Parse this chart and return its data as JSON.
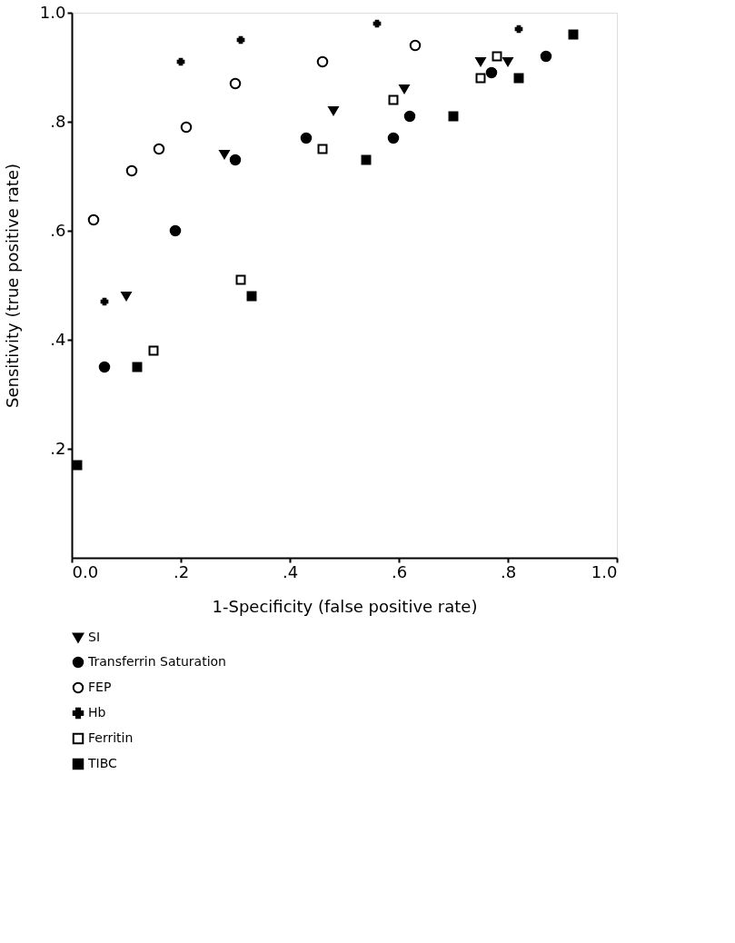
{
  "chart_data": {
    "type": "scatter",
    "xlabel": "1-Specificity (false positive rate)",
    "ylabel": "Sensitivity (true positive rate)",
    "xlim": [
      0,
      1
    ],
    "ylim": [
      0,
      1
    ],
    "xticks": [
      {
        "value": 0,
        "label": "0.0"
      },
      {
        "value": 0.2,
        "label": ".2"
      },
      {
        "value": 0.4,
        "label": ".4"
      },
      {
        "value": 0.6,
        "label": ".6"
      },
      {
        "value": 0.8,
        "label": ".8"
      },
      {
        "value": 1,
        "label": "1.0"
      }
    ],
    "yticks": [
      {
        "value": 0.2,
        "label": ".2"
      },
      {
        "value": 0.4,
        "label": ".4"
      },
      {
        "value": 0.6,
        "label": ".6"
      },
      {
        "value": 0.8,
        "label": ".8"
      },
      {
        "value": 1,
        "label": "1.0"
      }
    ],
    "grid": false,
    "legend": "bottom",
    "series": [
      {
        "name": "SI",
        "color": "#000000",
        "marker": "triangle",
        "x": [
          0.1,
          0.28,
          0.48,
          0.61,
          0.75,
          0.8
        ],
        "values": [
          0.48,
          0.74,
          0.82,
          0.86,
          0.91,
          0.91
        ]
      },
      {
        "name": "Transferrin Saturation",
        "color": "#000000",
        "marker": "circle",
        "x": [
          0.06,
          0.19,
          0.3,
          0.43,
          0.59,
          0.62,
          0.77,
          0.87
        ],
        "values": [
          0.35,
          0.6,
          0.73,
          0.77,
          0.77,
          0.81,
          0.89,
          0.92
        ]
      },
      {
        "name": "FEP",
        "color": "#ffffff",
        "marker": "circle",
        "x": [
          0.04,
          0.11,
          0.16,
          0.21,
          0.3,
          0.46,
          0.63
        ],
        "values": [
          0.62,
          0.71,
          0.75,
          0.79,
          0.87,
          0.91,
          0.94
        ]
      },
      {
        "name": "Hb",
        "color": "#000000",
        "marker": "cross",
        "x": [
          0.06,
          0.2,
          0.31,
          0.56,
          0.82
        ],
        "values": [
          0.47,
          0.91,
          0.95,
          0.98,
          0.97
        ]
      },
      {
        "name": "Ferritin",
        "color": "#ffffff",
        "marker": "square",
        "x": [
          0.15,
          0.31,
          0.46,
          0.59,
          0.75,
          0.78
        ],
        "values": [
          0.38,
          0.51,
          0.75,
          0.84,
          0.88,
          0.92
        ]
      },
      {
        "name": "TIBC",
        "color": "#000000",
        "marker": "square",
        "x": [
          0.01,
          0.12,
          0.33,
          0.54,
          0.7,
          0.82,
          0.92
        ],
        "values": [
          0.17,
          0.35,
          0.48,
          0.73,
          0.81,
          0.88,
          0.96
        ]
      }
    ]
  }
}
